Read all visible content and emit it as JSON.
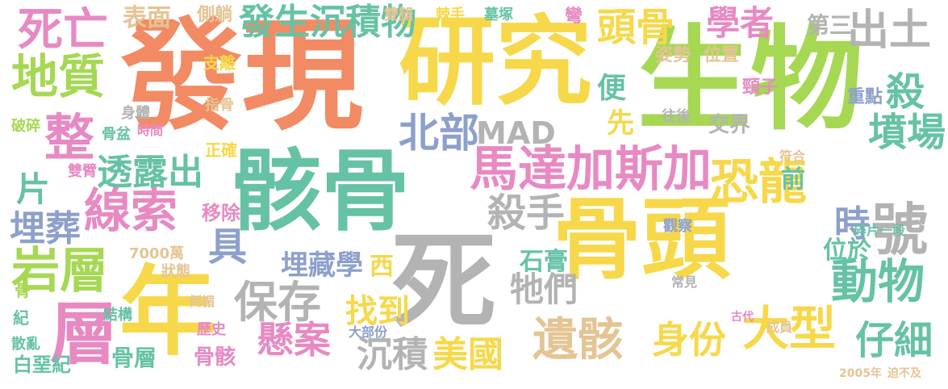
{
  "palette": {
    "orange": "#f28b63",
    "yellow": "#f7d84a",
    "green": "#66c2a5",
    "lime": "#a6d854",
    "pink": "#e78ac3",
    "blue": "#8da0cb",
    "tan": "#e5c494",
    "gray": "#b3b3b3"
  },
  "words": [
    {
      "text": "發現",
      "color": "orange"
    },
    {
      "text": "研究",
      "color": "yellow"
    },
    {
      "text": "生物",
      "color": "lime"
    },
    {
      "text": "骸骨",
      "color": "green"
    },
    {
      "text": "骨頭",
      "color": "yellow"
    },
    {
      "text": "死",
      "color": "gray"
    },
    {
      "text": "年",
      "color": "yellow"
    },
    {
      "text": "馬達加斯加",
      "color": "pink"
    },
    {
      "text": "層",
      "color": "pink"
    },
    {
      "text": "整",
      "color": "pink"
    },
    {
      "text": "死亡",
      "color": "pink"
    },
    {
      "text": "地質",
      "color": "lime"
    },
    {
      "text": "岩層",
      "color": "lime"
    },
    {
      "text": "線索",
      "color": "pink"
    },
    {
      "text": "透露出",
      "color": "green"
    },
    {
      "text": "保存",
      "color": "gray"
    },
    {
      "text": "遺骸",
      "color": "tan"
    },
    {
      "text": "恐龍",
      "color": "yellow"
    },
    {
      "text": "頭骨",
      "color": "yellow"
    },
    {
      "text": "學者",
      "color": "pink"
    },
    {
      "text": "出土",
      "color": "gray"
    },
    {
      "text": "發生沉積物",
      "color": "green"
    },
    {
      "text": "北部",
      "color": "blue"
    },
    {
      "text": "MAD",
      "color": "gray"
    },
    {
      "text": "殺手",
      "color": "gray"
    },
    {
      "text": "動物",
      "color": "green"
    },
    {
      "text": "號",
      "color": "gray"
    },
    {
      "text": "大型",
      "color": "yellow"
    },
    {
      "text": "身份",
      "color": "yellow"
    },
    {
      "text": "仔細",
      "color": "green"
    },
    {
      "text": "懸案",
      "color": "pink"
    },
    {
      "text": "沉積",
      "color": "gray"
    },
    {
      "text": "美國",
      "color": "yellow"
    },
    {
      "text": "牠們",
      "color": "gray"
    },
    {
      "text": "埋藏學",
      "color": "blue"
    },
    {
      "text": "找到",
      "color": "yellow"
    },
    {
      "text": "墳場",
      "color": "green"
    },
    {
      "text": "殺",
      "color": "green"
    },
    {
      "text": "時",
      "color": "blue"
    },
    {
      "text": "位於",
      "color": "green"
    },
    {
      "text": "埋葬",
      "color": "blue"
    },
    {
      "text": "片",
      "color": "green"
    },
    {
      "text": "具",
      "color": "blue"
    },
    {
      "text": "表面",
      "color": "tan"
    },
    {
      "text": "側躺",
      "color": "tan"
    },
    {
      "text": "第三",
      "color": "gray"
    },
    {
      "text": "便",
      "color": "green"
    },
    {
      "text": "先",
      "color": "yellow"
    },
    {
      "text": "前",
      "color": "green"
    },
    {
      "text": "石膏",
      "color": "green"
    },
    {
      "text": "西",
      "color": "yellow"
    },
    {
      "text": "移除",
      "color": "pink"
    },
    {
      "text": "骨層",
      "color": "green"
    },
    {
      "text": "骨骸",
      "color": "pink"
    },
    {
      "text": "白堊紀",
      "color": "green"
    },
    {
      "text": "重點",
      "color": "blue"
    },
    {
      "text": "交界",
      "color": "gray"
    },
    {
      "text": "往後",
      "color": "gray"
    },
    {
      "text": "頸子",
      "color": "pink"
    },
    {
      "text": "位置",
      "color": "tan"
    },
    {
      "text": "姿勢",
      "color": "tan"
    },
    {
      "text": "支離",
      "color": "yellow"
    },
    {
      "text": "正確",
      "color": "yellow"
    },
    {
      "text": "指骨",
      "color": "tan"
    },
    {
      "text": "時間",
      "color": "pink"
    },
    {
      "text": "身體",
      "color": "gray"
    },
    {
      "text": "骨盆",
      "color": "green"
    },
    {
      "text": "破碎",
      "color": "lime"
    },
    {
      "text": "雙臂",
      "color": "pink"
    },
    {
      "text": "雙腿",
      "color": "tan"
    },
    {
      "text": "棘手",
      "color": "yellow"
    },
    {
      "text": "墓塚",
      "color": "green"
    },
    {
      "text": "彎",
      "color": "pink"
    },
    {
      "text": "觀察",
      "color": "blue"
    },
    {
      "text": "符合",
      "color": "tan"
    },
    {
      "text": "碎片一段",
      "color": "green"
    },
    {
      "text": "7000萬",
      "color": "tan"
    },
    {
      "text": "狀態",
      "color": "tan"
    },
    {
      "text": "結構",
      "color": "green"
    },
    {
      "text": "歷史",
      "color": "pink"
    },
    {
      "text": "散亂",
      "color": "green"
    },
    {
      "text": "紀",
      "color": "green"
    },
    {
      "text": "骨",
      "color": "lime"
    },
    {
      "text": "倒楣",
      "color": "tan"
    },
    {
      "text": "大部份",
      "color": "blue"
    },
    {
      "text": "常見",
      "color": "gray"
    },
    {
      "text": "古代",
      "color": "pink"
    },
    {
      "text": "成員",
      "color": "tan"
    },
    {
      "text": "2005年",
      "color": "tan"
    },
    {
      "text": "迫不及",
      "color": "tan"
    }
  ]
}
